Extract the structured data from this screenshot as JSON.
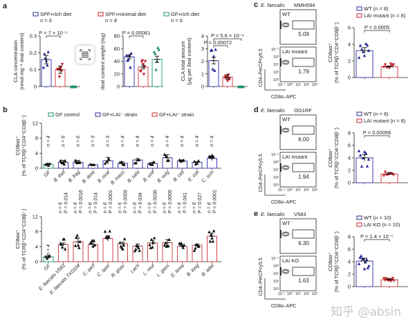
{
  "colors": {
    "blue": "#2b2b9a",
    "red": "#c8202a",
    "green": "#1e9468",
    "bar_blue": "#3b3bb0",
    "bar_red": "#d0404a",
    "bar_green": "#2aa080"
  },
  "watermark": "知乎 @absin",
  "chart_data": [
    {
      "panel": "a",
      "type": "bar",
      "legend": [
        {
          "label": "SPF+rich diet",
          "n": "n = 6",
          "color": "blue"
        },
        {
          "label": "SPF+minimal diet",
          "n": "n = 8",
          "color": "red"
        },
        {
          "label": "GF+rich diet",
          "n": "n = 6",
          "color": "green"
        }
      ],
      "subplots": [
        {
          "ylabel": [
            "CLA concentration",
            "(nmol mg⁻¹ ileal content)"
          ],
          "ylim": [
            0,
            0.3
          ],
          "ticks": [
            "0",
            "0.1",
            "0.2",
            "0.3"
          ],
          "tickvals": [
            0,
            0.1,
            0.2,
            0.3
          ],
          "values": [
            0.16,
            0.1,
            0.0
          ],
          "sem": [
            0.025,
            0.022,
            0
          ],
          "pvals": [
            {
              "text": "P = 7 × 10⁻⁵",
              "from": 0,
              "to": 1
            }
          ]
        },
        {
          "ylabel": [
            "Ileal content weight (mg)"
          ],
          "ylim": [
            0,
            80
          ],
          "ticks": [
            "0",
            "20",
            "40",
            "60",
            "80"
          ],
          "tickvals": [
            0,
            20,
            40,
            60,
            80
          ],
          "values": [
            47,
            31,
            43
          ],
          "sem": [
            3,
            3,
            5
          ],
          "pvals": [
            {
              "text": "P = 0.00081",
              "from": 0,
              "to": 1
            }
          ]
        },
        {
          "ylabel": [
            "CLA total amount",
            "(μg per ileal content)"
          ],
          "ylim": [
            0,
            4
          ],
          "ticks": [
            "0",
            "1",
            "2",
            "3",
            "4"
          ],
          "tickvals": [
            0,
            1,
            2,
            3,
            4
          ],
          "values": [
            2.05,
            0.75,
            0.0
          ],
          "sem": [
            0.25,
            0.18,
            0
          ],
          "pvals": [
            {
              "text": "P = 0.00072",
              "from": 0,
              "to": 1
            },
            {
              "text": "P = 5.6 × 10⁻⁶",
              "from": 0,
              "to": 2
            }
          ]
        }
      ]
    },
    {
      "panel": "b",
      "type": "bar",
      "legend": [
        {
          "label": "GF control",
          "color": "green"
        },
        {
          "label": "GF+LAI⁻ strain",
          "color": "blue"
        },
        {
          "label": "GF+LAI⁺ strain",
          "color": "red"
        }
      ],
      "ylabel": [
        "CD8αα⁺",
        "(% of TCRβ⁺CD4⁺CD8β⁻)"
      ],
      "ylim": [
        0,
        12
      ],
      "ticks": [
        "0",
        "4",
        "8",
        "12"
      ],
      "tickvals": [
        0,
        4,
        8,
        12
      ],
      "top": {
        "categories": [
          "GF",
          "B. thet",
          "B. frag",
          "B. dore",
          "B. ovat",
          "B. mass",
          "B. sala",
          "B. unif",
          "B. vulg",
          "B. cell",
          "E. coli",
          "C. scin"
        ],
        "groups": [
          "green",
          "blue",
          "blue",
          "blue",
          "blue",
          "blue",
          "blue",
          "blue",
          "blue",
          "blue",
          "blue",
          "blue"
        ],
        "values": [
          1.1,
          1.6,
          1.6,
          0.9,
          2.0,
          1.3,
          2.2,
          1.3,
          2.8,
          1.9,
          1.6,
          2.6
        ],
        "sem": [
          0.2,
          0.5,
          0.5,
          0.1,
          0.9,
          0.4,
          0.4,
          0.3,
          0.8,
          0.3,
          0.2,
          0.6
        ],
        "n": [
          "n = 4",
          "n = 6",
          "n = 6",
          "n = 3",
          "n = 3",
          "n = 4",
          "n = 4",
          "n = 4",
          "n = 4",
          "n = 4",
          "n = 4",
          "n = 4"
        ]
      },
      "bottom": {
        "categories": [
          "GF",
          "E. faecalis V583",
          "E. faecalis TX0104",
          "C. perf",
          "C. spor",
          "R. gnav",
          "Lach",
          "L. reut",
          "L. gass",
          "E. lenta",
          "B. long",
          "B. adol"
        ],
        "groups": [
          "green",
          "red",
          "red",
          "red",
          "red",
          "red",
          "red",
          "red",
          "red",
          "red",
          "red",
          "red"
        ],
        "values": [
          1.3,
          4.6,
          5.3,
          4.6,
          6.2,
          4.8,
          4.2,
          5.0,
          5.1,
          4.1,
          4.4,
          6.8
        ],
        "sem": [
          0.3,
          0.4,
          1.0,
          0.7,
          0.7,
          0.4,
          0.5,
          0.6,
          0.8,
          0.3,
          0.3,
          0.8
        ],
        "n": [
          "n = 4",
          "n = 6",
          "n = 6",
          "n = 6",
          "n = 6",
          "n = 6",
          "n = 6",
          "n = 6",
          "n = 6",
          "n = 6",
          "n = 6",
          "n = 6"
        ],
        "p": [
          "",
          "P = 0.014",
          "P = 0.0016",
          "P = 0.014",
          "P < 0.0001",
          "P = 0.0059",
          "P = 0.034",
          "P = 0.0036",
          "P = 0.0009",
          "P = 0.041",
          "P = 0.027",
          "P < 0.0001"
        ]
      }
    },
    {
      "panel": "c",
      "type": "bar",
      "strain": "E. faecalis MMH594",
      "flow": {
        "top_label": "WT",
        "top_value": "5.09",
        "bottom_label": "LAI mutant",
        "bottom_value": "1.79",
        "ylabel": "CD4–PerCPcy5.5",
        "xlabel": "CD8α–APC"
      },
      "legend": [
        {
          "label": "WT (n = 8)",
          "color": "blue"
        },
        {
          "label": "LAI mutant (n = 8)",
          "color": "red"
        }
      ],
      "ylabel": [
        "CD8αα⁺",
        "(% of TCRβ⁺CD4⁺CD8β⁻)"
      ],
      "ylim": [
        0,
        6
      ],
      "ticks": [
        "0",
        "2",
        "4",
        "6"
      ],
      "tickvals": [
        0,
        2,
        4,
        6
      ],
      "values": [
        3.25,
        1.3
      ],
      "sem": [
        0.35,
        0.1
      ],
      "pval": "P = 0.0005"
    },
    {
      "panel": "d",
      "type": "bar",
      "strain": "E. faecalis OG1RF",
      "flow": {
        "top_label": "WT",
        "top_value": "6.00",
        "bottom_label": "LAI mutant",
        "bottom_value": "1.94",
        "ylabel": "CD4–PerCPcy5.5",
        "xlabel": "CD8α–APC"
      },
      "legend": [
        {
          "label": "WT (n = 8)",
          "color": "blue"
        },
        {
          "label": "LAI mutant (n = 8)",
          "color": "red"
        }
      ],
      "ylabel": [
        "CD8αα⁺",
        "(% of TCRβ⁺CD4⁺CD8β⁻)"
      ],
      "ylim": [
        0,
        8
      ],
      "ticks": [
        "0",
        "2",
        "4",
        "6",
        "8"
      ],
      "tickvals": [
        0,
        2,
        4,
        6,
        8
      ],
      "values": [
        4.0,
        1.4
      ],
      "sem": [
        0.5,
        0.2
      ],
      "pval": "P = 0.00056"
    },
    {
      "panel": "e",
      "type": "bar",
      "strain": "E. faecalis V583",
      "flow": {
        "top_label": "WT",
        "top_value": "6.30",
        "bottom_label": "LAI KO",
        "bottom_value": "1.63",
        "ylabel": "CD4–PerCPcy5.5",
        "xlabel": "CD8α–APC"
      },
      "legend": [
        {
          "label": "WT (n = 10)",
          "color": "blue"
        },
        {
          "label": "LAI KO (n = 10)",
          "color": "red"
        }
      ],
      "ylabel": [
        "CD8αα⁺",
        "(% of TCRβ⁺CD4⁺CD8β⁻)"
      ],
      "ylim": [
        0,
        8
      ],
      "ticks": [
        "0",
        "2",
        "4",
        "6",
        "8"
      ],
      "tickvals": [
        0,
        2,
        4,
        6,
        8
      ],
      "values": [
        4.1,
        1.1
      ],
      "sem": [
        0.45,
        0.15
      ],
      "pval": "P = 1.4 × 10⁻⁵"
    }
  ],
  "flow_ticks": [
    "10⁻¹",
    "10⁰",
    "10¹",
    "10²",
    "10³"
  ]
}
